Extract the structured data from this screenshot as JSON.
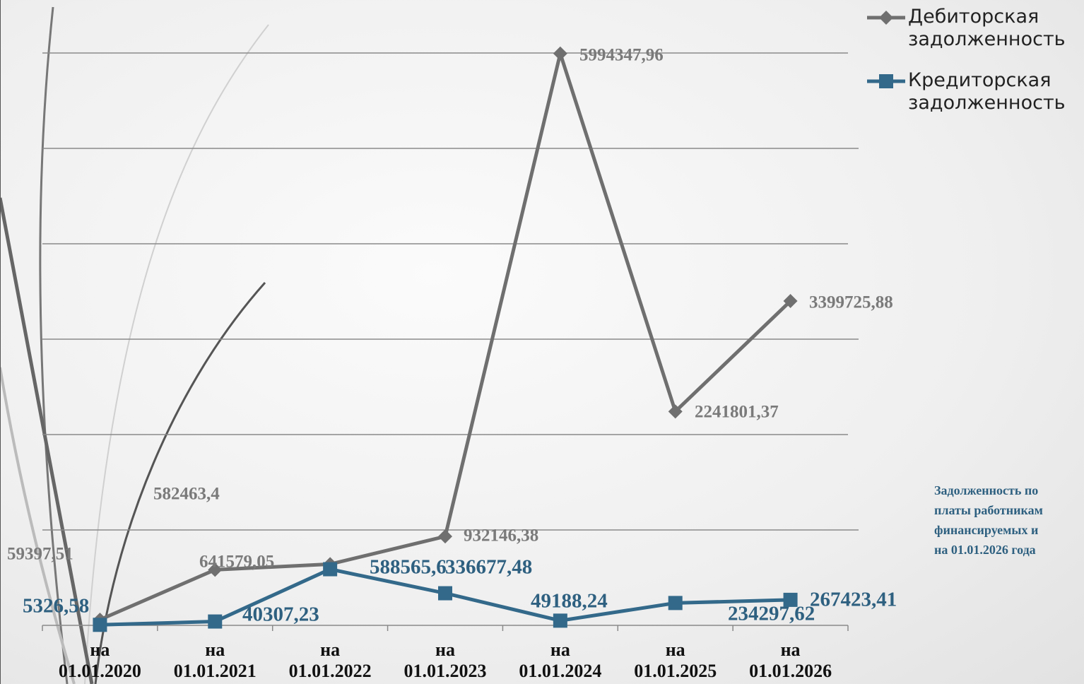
{
  "chart_data": {
    "type": "line",
    "categories": [
      "на 01.01.2020",
      "на 01.01.2021",
      "на 01.01.2022",
      "на 01.01.2023",
      "на 01.01.2024",
      "на 01.01.2025",
      "на 01.01.2026"
    ],
    "series": [
      {
        "name": "Дебиторская задолженность",
        "color": "#6f6f6f",
        "marker": "diamond",
        "values": [
          59397.51,
          582463.4,
          641579.05,
          932146.38,
          5994347.96,
          2241801.37,
          3399725.88
        ],
        "value_labels": [
          "59397,51",
          "582463,4",
          "641579,05",
          "932146,38",
          "5994347,96",
          "2241801,37",
          "3399725,88"
        ]
      },
      {
        "name": "Кредиторская задолженность",
        "color": "#33698a",
        "marker": "square",
        "values": [
          5326.58,
          40307.23,
          588565.6,
          336677.48,
          49188.24,
          234297.62,
          267423.41
        ],
        "value_labels": [
          "5326,58",
          "40307,23",
          "588565,6",
          "336677,48",
          "49188,24",
          "234297,62",
          "267423,41"
        ]
      }
    ],
    "ylim": [
      0,
      6000000
    ],
    "yticks": [
      0,
      1000000,
      2000000,
      3000000,
      4000000,
      5000000,
      6000000
    ],
    "grid": true,
    "legend": "top-right",
    "annotation_lines": [
      "Задолженность по",
      "платы работникам",
      "финансируемых и",
      "на 01.01.2026 года"
    ]
  }
}
